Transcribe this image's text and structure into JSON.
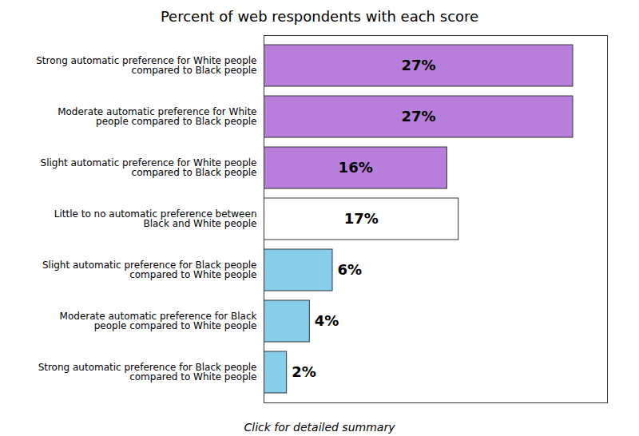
{
  "chart_data": {
    "type": "bar",
    "orientation": "horizontal",
    "title": "Percent of web respondents with each score",
    "subtitle": "Click for detailed summary",
    "categories": [
      "Strong automatic preference for White people\ncompared to Black people",
      "Moderate automatic preference for White\npeople compared to Black people",
      "Slight automatic preference for White people\ncompared to Black people",
      "Little to no automatic preference between\nBlack and White people",
      "Slight automatic preference for Black people\ncompared to White people",
      "Moderate automatic preference for Black\npeople compared to White people",
      "Strong automatic preference for Black people\ncompared to White people"
    ],
    "values": [
      27,
      27,
      16,
      17,
      6,
      4,
      2
    ],
    "value_labels": [
      "27%",
      "27%",
      "16%",
      "17%",
      "6%",
      "4%",
      "2%"
    ],
    "data_labels": true,
    "colors": [
      "#b87edc",
      "#b87edc",
      "#b87edc",
      "#ffffff",
      "#87ceeb",
      "#87ceeb",
      "#87ceeb"
    ],
    "xlim": [
      0,
      30
    ],
    "tick_labels": "y",
    "grid": false
  }
}
